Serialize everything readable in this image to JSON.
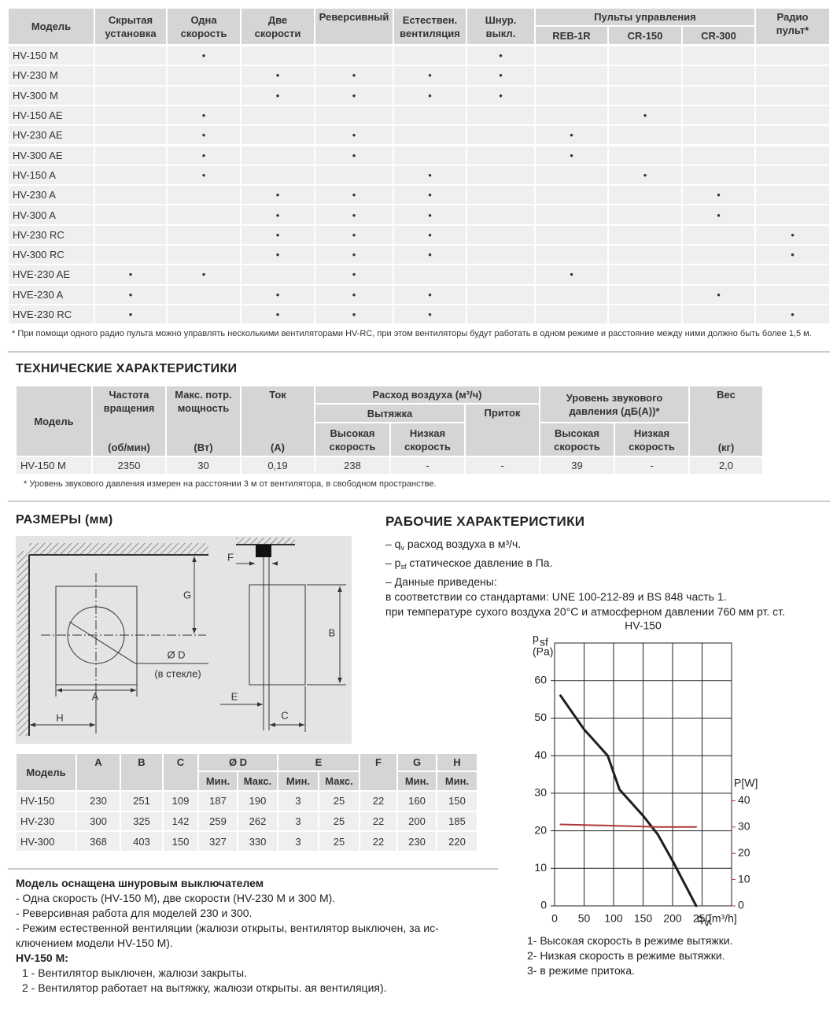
{
  "features": {
    "headers": {
      "model": "Модель",
      "columns": [
        "Скрытая\nустановка",
        "Одна\nскорость",
        "Две\nскорости",
        "Реверсивный",
        "Естествен.\nвентиляция",
        "Шнур.\nвыкл."
      ],
      "remotes_group": "Пульты управления",
      "remotes": [
        "REB-1R",
        "CR-150",
        "CR-300"
      ],
      "radio": "Радио пульт*"
    },
    "rows": [
      [
        "HV-150 M",
        null,
        "•",
        null,
        null,
        null,
        "•",
        null,
        null,
        null,
        null
      ],
      [
        "HV-230 M",
        null,
        null,
        "•",
        "•",
        "•",
        "•",
        null,
        null,
        null,
        null
      ],
      [
        "HV-300 M",
        null,
        null,
        "•",
        "•",
        "•",
        "•",
        null,
        null,
        null,
        null
      ],
      [
        "HV-150 AE",
        null,
        "•",
        null,
        null,
        null,
        null,
        null,
        "•",
        null,
        null
      ],
      [
        "HV-230 AE",
        null,
        "•",
        null,
        "•",
        null,
        null,
        "•",
        null,
        null,
        null
      ],
      [
        "HV-300 AE",
        null,
        "•",
        null,
        "•",
        null,
        null,
        "•",
        null,
        null,
        null
      ],
      [
        "HV-150 A",
        null,
        "•",
        null,
        null,
        "•",
        null,
        null,
        "•",
        null,
        null
      ],
      [
        "HV-230 A",
        null,
        null,
        "•",
        "•",
        "•",
        null,
        null,
        null,
        "•",
        null
      ],
      [
        "HV-300 A",
        null,
        null,
        "•",
        "•",
        "•",
        null,
        null,
        null,
        "•",
        null
      ],
      [
        "HV-230 RC",
        null,
        null,
        "•",
        "•",
        "•",
        null,
        null,
        null,
        null,
        "•"
      ],
      [
        "HV-300 RC",
        null,
        null,
        "•",
        "•",
        "•",
        null,
        null,
        null,
        null,
        "•"
      ],
      [
        "HVE-230 AE",
        "•",
        "•",
        null,
        "•",
        null,
        null,
        "•",
        null,
        null,
        null
      ],
      [
        "HVE-230 A",
        "•",
        null,
        "•",
        "•",
        "•",
        null,
        null,
        null,
        "•",
        null
      ],
      [
        "HVE-230 RC",
        "•",
        null,
        "•",
        "•",
        "•",
        null,
        null,
        null,
        null,
        "•"
      ]
    ],
    "footnote": "* При помощи одного радио пульта можно управлять несколькими вентиляторами HV-RC, при этом вентиляторы будут работать в одном режиме и расстояние между ними должно быть более 1,5 м."
  },
  "tech": {
    "title": "ТЕХНИЧЕСКИЕ ХАРАКТЕРИСТИКИ",
    "headers": {
      "model": "Модель",
      "speed": "Частота\nвращения",
      "speed_unit": "(об/мин)",
      "power": "Макс. потр.\nмощность",
      "power_unit": "(Вт)",
      "current": "Ток",
      "current_unit": "(А)",
      "airflow": "Расход воздуха (м³/ч)",
      "exhaust": "Вытяжка",
      "supply": "Приток",
      "high": "Высокая\nскорость",
      "low": "Низкая\nскорость",
      "noise": "Уровень звукового\nдавления (дБ(А))*",
      "noise_high": "Высокая\nскорость",
      "noise_low": "Низкая\nскорость",
      "weight": "Вес",
      "weight_unit": "(кг)"
    },
    "rows": [
      [
        "HV-150 M",
        "2350",
        "30",
        "0,19",
        "238",
        "-",
        "-",
        "39",
        "-",
        "2,0"
      ]
    ],
    "footnote": "* Уровень звукового давления измерен на расстоянии 3 м от вентилятора, в свободном пространстве."
  },
  "dimensions": {
    "title": "РАЗМЕРЫ (мм)",
    "diagram_labels": {
      "F": "F",
      "G": "G",
      "B": "B",
      "D": "Ø D",
      "glass": "(в стекле)",
      "A": "A",
      "H": "H",
      "E": "E",
      "C": "C"
    },
    "headers": {
      "model": "Модель",
      "A": "A",
      "B": "B",
      "C": "C",
      "D": "Ø D",
      "E": "E",
      "F": "F",
      "G": "G",
      "H": "H",
      "min": "Мин.",
      "max": "Макс."
    },
    "rows": [
      [
        "HV-150",
        "230",
        "251",
        "109",
        "187",
        "190",
        "3",
        "25",
        "22",
        "160",
        "150"
      ],
      [
        "HV-230",
        "300",
        "325",
        "142",
        "259",
        "262",
        "3",
        "25",
        "22",
        "200",
        "185"
      ],
      [
        "HV-300",
        "368",
        "403",
        "150",
        "327",
        "330",
        "3",
        "25",
        "22",
        "230",
        "220"
      ]
    ]
  },
  "notes": {
    "title": "Модель оснащена шнуровым выключателем",
    "lines": [
      "- Одна скорость (HV-150 M), две скорости (HV-230 M и 300 M).",
      "- Реверсивная работа для моделей 230 и 300.",
      "- Режим естественной вентиляции (жалюзи открыты, вентилятор выключен, за ис-\nключением модели HV-150 M)."
    ],
    "subtitle": "HV-150 M:",
    "items": [
      "1 - Вентилятор выключен, жалюзи закрыты.",
      "2 - Вентилятор работает на вытяжку, жалюзи открыты.  ая вентиляция)."
    ]
  },
  "performance": {
    "title": "РАБОЧИЕ ХАРАКТЕРИСТИКИ",
    "lines": [
      [
        "– q",
        "v",
        " расход воздуха в м³/ч."
      ],
      [
        "– p",
        "sf",
        " статическое давление в Па."
      ],
      [
        "– Данные приведены:"
      ],
      [
        "в соответствии со стандартами: UNE 100-212-89 и BS 848 часть 1."
      ],
      [
        "при температуре сухого воздуха 20°C и атмосферном давлении 760 мм рт. ст."
      ]
    ],
    "legend": [
      "1- Высокая скорость в режиме вытяжки.",
      "2- Низкая скорость в режиме вытяжки.",
      "3- в режиме притока."
    ]
  },
  "chart_data": {
    "type": "line",
    "title": "HV-150",
    "y_label": [
      "p",
      "sf"
    ],
    "y_unit": "(Pa)",
    "y2_label": "P[W]",
    "x_label": [
      "q",
      "v",
      " [m³/h]"
    ],
    "xlim": [
      0,
      300
    ],
    "xticks": [
      0,
      50,
      100,
      150,
      200,
      250
    ],
    "ylim": [
      0,
      70
    ],
    "yticks": [
      0,
      10,
      20,
      30,
      40,
      50,
      60
    ],
    "y2lim": [
      0,
      100
    ],
    "y2ticks": [
      0,
      10,
      20,
      30,
      40
    ],
    "grid": true,
    "series": [
      {
        "color": "#1e1e1e",
        "x": [
          10,
          50,
          90,
          110,
          150,
          175,
          200,
          240
        ],
        "values": [
          56,
          47,
          40,
          31,
          24,
          19,
          12,
          0
        ]
      },
      {
        "color": "#b0353a",
        "axis": "y2",
        "x": [
          10,
          100,
          175,
          240
        ],
        "values": [
          31,
          30.5,
          30,
          30
        ]
      }
    ]
  }
}
